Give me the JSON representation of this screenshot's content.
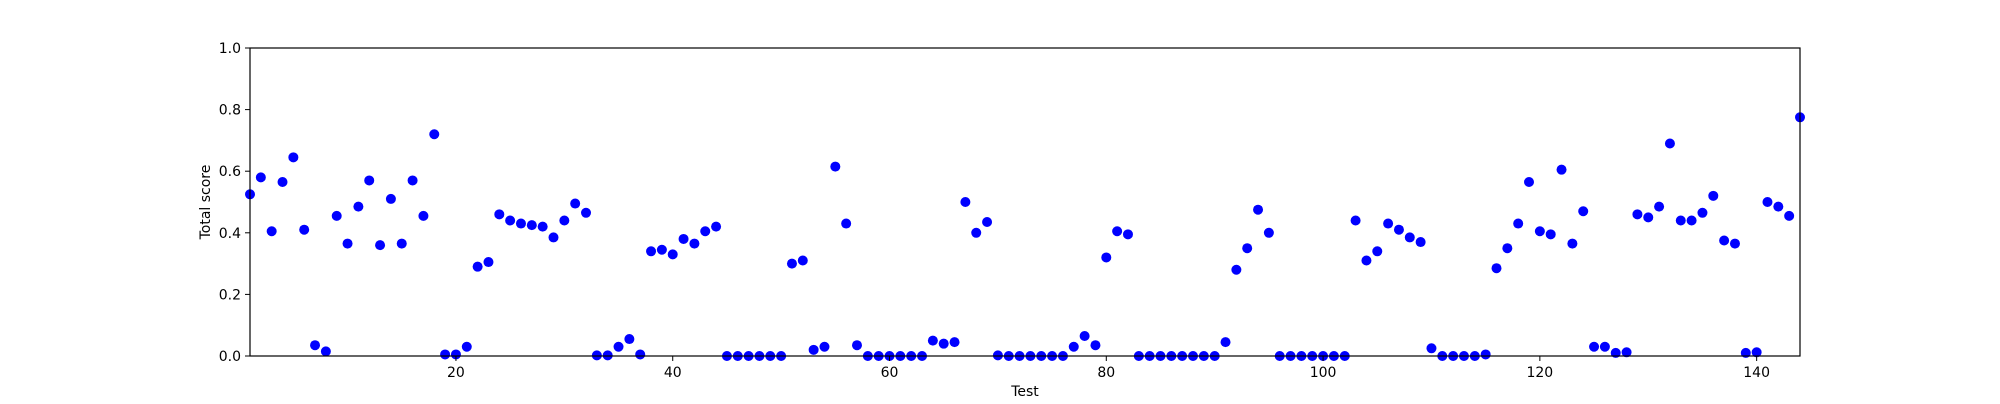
{
  "chart_data": {
    "type": "scatter",
    "title": "",
    "xlabel": "Test",
    "ylabel": "Total score",
    "xlim": [
      1,
      144
    ],
    "ylim": [
      0.0,
      1.0
    ],
    "xticks": [
      "20",
      "40",
      "60",
      "80",
      "100",
      "120",
      "140"
    ],
    "yticks": [
      "0.0",
      "0.2",
      "0.4",
      "0.6",
      "0.8",
      "1.0"
    ],
    "grid": false,
    "legend": "none",
    "color": "#0000ff",
    "series": [
      {
        "x": [
          1,
          2,
          3,
          4,
          5,
          6,
          7,
          8,
          9,
          10,
          11,
          12,
          13,
          14,
          15,
          16,
          17,
          18,
          19,
          20,
          21,
          22,
          23,
          24,
          25,
          26,
          27,
          28,
          29,
          30,
          31,
          32,
          33,
          34,
          35,
          36,
          37,
          38,
          39,
          40,
          41,
          42,
          43,
          44,
          45,
          46,
          47,
          48,
          49,
          50,
          51,
          52,
          53,
          54,
          55,
          56,
          57,
          58,
          59,
          60,
          61,
          62,
          63,
          64,
          65,
          66,
          67,
          68,
          69,
          70,
          71,
          72,
          73,
          74,
          75,
          76,
          77,
          78,
          79,
          80,
          81,
          82,
          83,
          84,
          85,
          86,
          87,
          88,
          89,
          90,
          91,
          92,
          93,
          94,
          95,
          96,
          97,
          98,
          99,
          100,
          101,
          102,
          103,
          104,
          105,
          106,
          107,
          108,
          109,
          110,
          111,
          112,
          113,
          114,
          115,
          116,
          117,
          118,
          119,
          120,
          121,
          122,
          123,
          124,
          125,
          126,
          127,
          128,
          129,
          130,
          131,
          132,
          133,
          134,
          135,
          136,
          137,
          138,
          139,
          140,
          141,
          142,
          143,
          144
        ],
        "y": [
          0.525,
          0.58,
          0.405,
          0.565,
          0.645,
          0.41,
          0.035,
          0.015,
          0.455,
          0.365,
          0.485,
          0.57,
          0.36,
          0.51,
          0.365,
          0.57,
          0.455,
          0.72,
          0.005,
          0.005,
          0.03,
          0.29,
          0.305,
          0.46,
          0.44,
          0.43,
          0.425,
          0.42,
          0.385,
          0.44,
          0.495,
          0.465,
          0.002,
          0.002,
          0.03,
          0.055,
          0.005,
          0.34,
          0.345,
          0.33,
          0.38,
          0.365,
          0.405,
          0.42,
          0.0,
          0.0,
          0.0,
          0.0,
          0.0,
          0.0,
          0.3,
          0.31,
          0.02,
          0.03,
          0.615,
          0.43,
          0.035,
          0.0,
          0.0,
          0.0,
          0.0,
          0.0,
          0.0,
          0.05,
          0.04,
          0.045,
          0.5,
          0.4,
          0.435,
          0.002,
          0.0,
          0.0,
          0.0,
          0.0,
          0.0,
          0.0,
          0.03,
          0.065,
          0.035,
          0.32,
          0.405,
          0.395,
          0.0,
          0.0,
          0.0,
          0.0,
          0.0,
          0.0,
          0.0,
          0.0,
          0.045,
          0.28,
          0.35,
          0.475,
          0.4,
          0.0,
          0.0,
          0.0,
          0.0,
          0.0,
          0.0,
          0.0,
          0.44,
          0.31,
          0.34,
          0.43,
          0.41,
          0.385,
          0.37,
          0.025,
          0.0,
          0.0,
          0.0,
          0.0,
          0.005,
          0.285,
          0.35,
          0.43,
          0.565,
          0.405,
          0.395,
          0.605,
          0.365,
          0.47,
          0.03,
          0.03,
          0.01,
          0.012,
          0.46,
          0.45,
          0.485,
          0.69,
          0.44,
          0.44,
          0.465,
          0.52,
          0.375,
          0.365,
          0.01,
          0.012,
          0.5,
          0.485,
          0.455,
          0.775
        ]
      }
    ]
  }
}
